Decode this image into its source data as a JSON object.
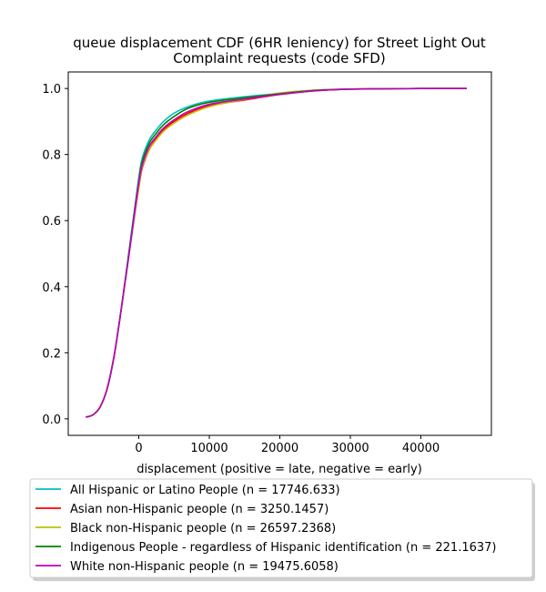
{
  "chart_data": {
    "type": "line",
    "title_line1": "queue displacement CDF (6HR leniency) for Street Light Out",
    "title_line2": "Complaint  requests (code SFD)",
    "xlabel": "displacement (positive = late, negative = early)",
    "ylabel": "",
    "xlim": [
      -10000,
      50000
    ],
    "ylim": [
      -0.05,
      1.05
    ],
    "xticks": [
      0,
      10000,
      20000,
      30000,
      40000
    ],
    "xtick_labels": [
      "0",
      "10000",
      "20000",
      "30000",
      "40000"
    ],
    "yticks": [
      0.0,
      0.2,
      0.4,
      0.6,
      0.8,
      1.0
    ],
    "ytick_labels": [
      "0.0",
      "0.2",
      "0.4",
      "0.6",
      "0.8",
      "1.0"
    ],
    "grid": false,
    "legend_position": "below",
    "series": [
      {
        "name": "All Hispanic or Latino People (n = 17746.633)",
        "color": "#00bfbf",
        "x": [
          -7500,
          -6500,
          -5500,
          -4500,
          -3500,
          -2500,
          -1500,
          -500,
          0,
          500,
          1500,
          2500,
          3500,
          5000,
          7000,
          10000,
          15000,
          20000,
          25000,
          30000,
          35000,
          40000,
          46500
        ],
        "y": [
          0.005,
          0.012,
          0.035,
          0.09,
          0.19,
          0.33,
          0.49,
          0.65,
          0.73,
          0.79,
          0.845,
          0.875,
          0.9,
          0.925,
          0.945,
          0.962,
          0.975,
          0.985,
          0.995,
          0.998,
          0.999,
          1.0,
          1.0
        ]
      },
      {
        "name": "Asian non-Hispanic people (n = 3250.1457)",
        "color": "#ff0000",
        "x": [
          -7500,
          -6500,
          -5500,
          -4500,
          -3500,
          -2500,
          -1500,
          -500,
          0,
          500,
          1500,
          2500,
          3500,
          5000,
          7000,
          10000,
          15000,
          20000,
          25000,
          30000,
          35000,
          40000,
          46500
        ],
        "y": [
          0.005,
          0.012,
          0.035,
          0.09,
          0.19,
          0.33,
          0.48,
          0.63,
          0.7,
          0.76,
          0.815,
          0.85,
          0.875,
          0.9,
          0.925,
          0.948,
          0.965,
          0.982,
          0.993,
          0.998,
          0.999,
          1.0,
          1.0
        ]
      },
      {
        "name": "Black non-Hispanic people (n = 26597.2368)",
        "color": "#bfbf00",
        "x": [
          -7500,
          -6500,
          -5500,
          -4500,
          -3500,
          -2500,
          -1500,
          -500,
          0,
          500,
          1500,
          2500,
          3500,
          5000,
          7000,
          10000,
          15000,
          20000,
          25000,
          30000,
          35000,
          40000,
          46500
        ],
        "y": [
          0.005,
          0.012,
          0.035,
          0.09,
          0.19,
          0.33,
          0.48,
          0.635,
          0.705,
          0.765,
          0.815,
          0.845,
          0.87,
          0.895,
          0.92,
          0.945,
          0.967,
          0.986,
          0.995,
          0.998,
          0.999,
          1.0,
          1.0
        ]
      },
      {
        "name": "Indigenous People - regardless of Hispanic identification (n = 221.1637)",
        "color": "#008000",
        "x": [
          -7500,
          -6500,
          -5500,
          -4500,
          -3500,
          -2500,
          -1500,
          -500,
          0,
          500,
          1500,
          2500,
          3500,
          5000,
          7000,
          10000,
          15000,
          20000,
          25000,
          30000,
          35000,
          40000,
          46500
        ],
        "y": [
          0.005,
          0.012,
          0.035,
          0.09,
          0.19,
          0.33,
          0.485,
          0.645,
          0.72,
          0.78,
          0.835,
          0.865,
          0.89,
          0.915,
          0.94,
          0.958,
          0.972,
          0.984,
          0.994,
          0.998,
          0.999,
          1.0,
          1.0
        ]
      },
      {
        "name": "White non-Hispanic people (n = 19475.6058)",
        "color": "#bf00bf",
        "x": [
          -7500,
          -6500,
          -5500,
          -4500,
          -3500,
          -2500,
          -1500,
          -500,
          0,
          500,
          1500,
          2500,
          3500,
          5000,
          7000,
          10000,
          15000,
          20000,
          25000,
          30000,
          35000,
          40000,
          46500
        ],
        "y": [
          0.005,
          0.012,
          0.035,
          0.09,
          0.19,
          0.33,
          0.48,
          0.64,
          0.715,
          0.77,
          0.825,
          0.855,
          0.88,
          0.905,
          0.93,
          0.952,
          0.968,
          0.982,
          0.993,
          0.998,
          0.999,
          1.0,
          1.0
        ]
      }
    ]
  }
}
